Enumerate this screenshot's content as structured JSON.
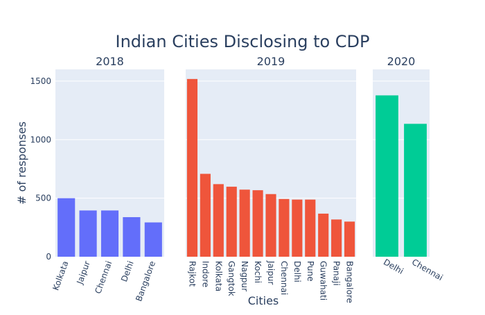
{
  "chart_data": {
    "type": "bar",
    "title": "Indian Cities Disclosing to CDP",
    "xlabel": "Cities",
    "ylabel": "# of responses",
    "ylim": [
      0,
      1600
    ],
    "yticks": [
      0,
      500,
      1000,
      1500
    ],
    "grid": true,
    "panels": [
      {
        "name": "2018",
        "color": "#636efa",
        "categories": [
          "Kolkata",
          "Jaipur",
          "Chennai",
          "Delhi",
          "Bangalore"
        ],
        "values": [
          500,
          395,
          395,
          338,
          293
        ]
      },
      {
        "name": "2019",
        "color": "#ef553b",
        "categories": [
          "Rajkot",
          "Indore",
          "Kolkata",
          "Gangtok",
          "Nagpur",
          "Kochi",
          "Jaipur",
          "Chennai",
          "Delhi",
          "Pune",
          "Guwahati",
          "Panaji",
          "Bangalore"
        ],
        "values": [
          1518,
          708,
          620,
          598,
          573,
          568,
          535,
          493,
          488,
          488,
          368,
          318,
          300
        ]
      },
      {
        "name": "2020",
        "color": "#00cc96",
        "categories": [
          "Delhi",
          "Chennai"
        ],
        "values": [
          1378,
          1135
        ]
      }
    ]
  }
}
